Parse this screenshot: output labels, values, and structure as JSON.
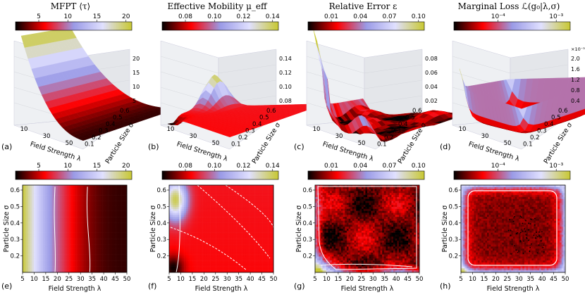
{
  "figure": {
    "colormap_stops": [
      "#000000",
      "#ff0000",
      "#9a9ae6",
      "#e0e0ff",
      "#c8c832"
    ],
    "panels": [
      {
        "id": "a",
        "letter": "(a)",
        "title": "MFPT ⟨τ⟩",
        "cbar_ticks": [
          "5",
          "10",
          "15",
          "20"
        ],
        "z_ticks": [
          "20",
          "15",
          "10",
          "5"
        ],
        "surface": "mfpt"
      },
      {
        "id": "b",
        "letter": "(b)",
        "title": "Effective Mobility μ_eff",
        "cbar_ticks": [
          "0.08",
          "0.10",
          "0.12",
          "0.14"
        ],
        "z_ticks": [
          "0.14",
          "0.12",
          "0.10",
          "0.08"
        ],
        "surface": "mobility"
      },
      {
        "id": "c",
        "letter": "(c)",
        "title": "Relative Error ε",
        "cbar_ticks": [
          "0.01",
          "0.04",
          "0.07",
          "0.10"
        ],
        "z_ticks": [
          "0.08",
          "0.06",
          "0.04",
          "0.02"
        ],
        "surface": "error"
      },
      {
        "id": "d",
        "letter": "(d)",
        "title": "Marginal Loss ℒ(g₀|λ,σ)",
        "cbar_ticks": [
          "10⁻⁴",
          "10⁻³"
        ],
        "z_ticks": [
          "2.0",
          "1.6",
          "1.2",
          "0.8",
          "0.4"
        ],
        "z_scale": "×10⁻³",
        "surface": "loss"
      }
    ],
    "heatmaps": [
      {
        "id": "e",
        "letter": "(e)",
        "cbar_ticks": [
          "5",
          "10",
          "15",
          "20"
        ],
        "field": "mfpt"
      },
      {
        "id": "f",
        "letter": "(f)",
        "cbar_ticks": [
          "0.08",
          "0.10",
          "0.12",
          "0.14"
        ],
        "field": "mobility"
      },
      {
        "id": "g",
        "letter": "(g)",
        "cbar_ticks": [
          "0.01",
          "0.04",
          "0.07",
          "0.10"
        ],
        "field": "error"
      },
      {
        "id": "h",
        "letter": "(h)",
        "cbar_ticks": [
          "10⁻⁴",
          "10⁻³"
        ],
        "field": "loss"
      }
    ],
    "axis_3d": {
      "x_label": "Field Strength λ",
      "y_label": "Particle Size σ",
      "x_ticks": [
        "10",
        "30",
        "50"
      ],
      "y_ticks": [
        "0.6",
        "0.5",
        "0.4",
        "0.3",
        "0.2",
        "0.1"
      ]
    },
    "axis_2d": {
      "x_label": "Field Strength λ",
      "y_label": "Particle Size σ",
      "x_ticks": [
        "5",
        "10",
        "15",
        "20",
        "25",
        "30",
        "35",
        "40",
        "45",
        "50"
      ],
      "y_ticks": [
        "0.6",
        "0.5",
        "0.4",
        "0.3",
        "0.2"
      ]
    }
  },
  "chart_data": [
    {
      "type": "heatmap",
      "panel": "e",
      "title": "MFPT ⟨τ⟩",
      "xlabel": "Field Strength λ",
      "ylabel": "Particle Size σ",
      "xlim": [
        5,
        50
      ],
      "ylim": [
        0.1,
        0.63
      ],
      "zlim": [
        1,
        21
      ],
      "profile_x": [
        5,
        10,
        15,
        20,
        25,
        30,
        35,
        40,
        45,
        50
      ],
      "profile_values": [
        21,
        13,
        9,
        7,
        5.5,
        4.5,
        3.6,
        3,
        2.5,
        2
      ],
      "contours": [
        {
          "level": 8,
          "x_at_sigma": [
            [
              0.62,
              19
            ],
            [
              0.1,
              19
            ]
          ]
        },
        {
          "level": 5,
          "x_at_sigma": [
            [
              0.62,
              33
            ],
            [
              0.1,
              34
            ]
          ]
        }
      ]
    },
    {
      "type": "heatmap",
      "panel": "f",
      "title": "Effective Mobility μ_eff",
      "xlabel": "Field Strength λ",
      "ylabel": "Particle Size σ",
      "xlim": [
        5,
        50
      ],
      "ylim": [
        0.1,
        0.63
      ],
      "zlim": [
        0.07,
        0.15
      ],
      "peak": {
        "x": 8,
        "y": 0.55,
        "value": 0.148
      },
      "min_region": {
        "x": 7,
        "y": 0.12,
        "value": 0.07
      }
    },
    {
      "type": "heatmap",
      "panel": "g",
      "title": "Relative Error ε",
      "xlabel": "Field Strength λ",
      "ylabel": "Particle Size σ",
      "xlim": [
        5,
        50
      ],
      "ylim": [
        0.1,
        0.63
      ],
      "zlim": [
        0,
        0.1
      ],
      "max_region": {
        "x": 5,
        "y": 0.12,
        "value": 0.1
      }
    },
    {
      "type": "heatmap",
      "panel": "h",
      "title": "Marginal Loss ℒ(g₀|λ,σ)",
      "xlabel": "Field Strength λ",
      "ylabel": "Particle Size σ",
      "xlim": [
        5,
        50
      ],
      "ylim": [
        0.1,
        0.63
      ],
      "zlim": [
        5e-05,
        0.002
      ],
      "zscale": "log",
      "max_region": {
        "x": 5,
        "y": 0.1,
        "value": 0.002
      }
    }
  ]
}
